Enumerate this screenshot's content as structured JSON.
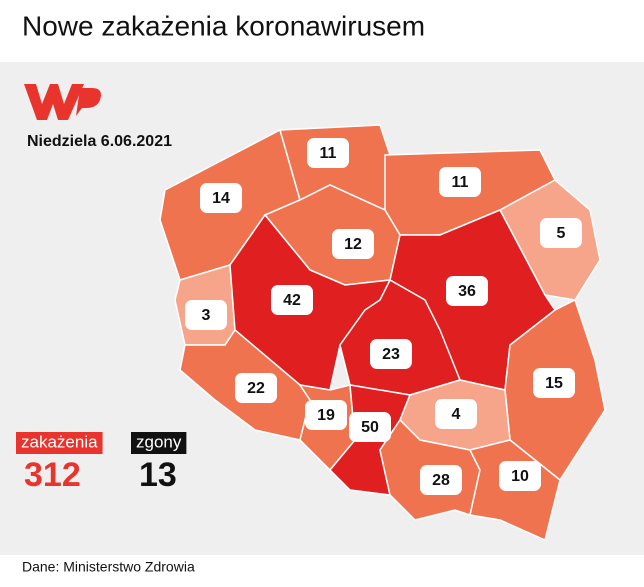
{
  "header": {
    "title": "Nowe zakażenia koronawirusem"
  },
  "map": {
    "date": "Niedziela 6.06.2021",
    "regions": [
      {
        "value": 14,
        "color": "#f07350"
      },
      {
        "value": 11,
        "color": "#f07350"
      },
      {
        "value": 11,
        "color": "#f07350"
      },
      {
        "value": 5,
        "color": "#f6a58a"
      },
      {
        "value": 12,
        "color": "#f07350"
      },
      {
        "value": 3,
        "color": "#f6a58a"
      },
      {
        "value": 42,
        "color": "#e02020"
      },
      {
        "value": 36,
        "color": "#e02020"
      },
      {
        "value": 23,
        "color": "#e02020"
      },
      {
        "value": 15,
        "color": "#f07350"
      },
      {
        "value": 22,
        "color": "#f07350"
      },
      {
        "value": 19,
        "color": "#f07350"
      },
      {
        "value": 50,
        "color": "#e02020"
      },
      {
        "value": 4,
        "color": "#f6a58a"
      },
      {
        "value": 28,
        "color": "#f07350"
      },
      {
        "value": 10,
        "color": "#f07350"
      }
    ],
    "totals": [
      {
        "label": "zakażenia",
        "value": 312,
        "color": "#e8342c"
      },
      {
        "label": "zgony",
        "value": 13,
        "color": "#111111"
      }
    ]
  },
  "footer": {
    "source": "Dane: Ministerstwo Zdrowia"
  }
}
